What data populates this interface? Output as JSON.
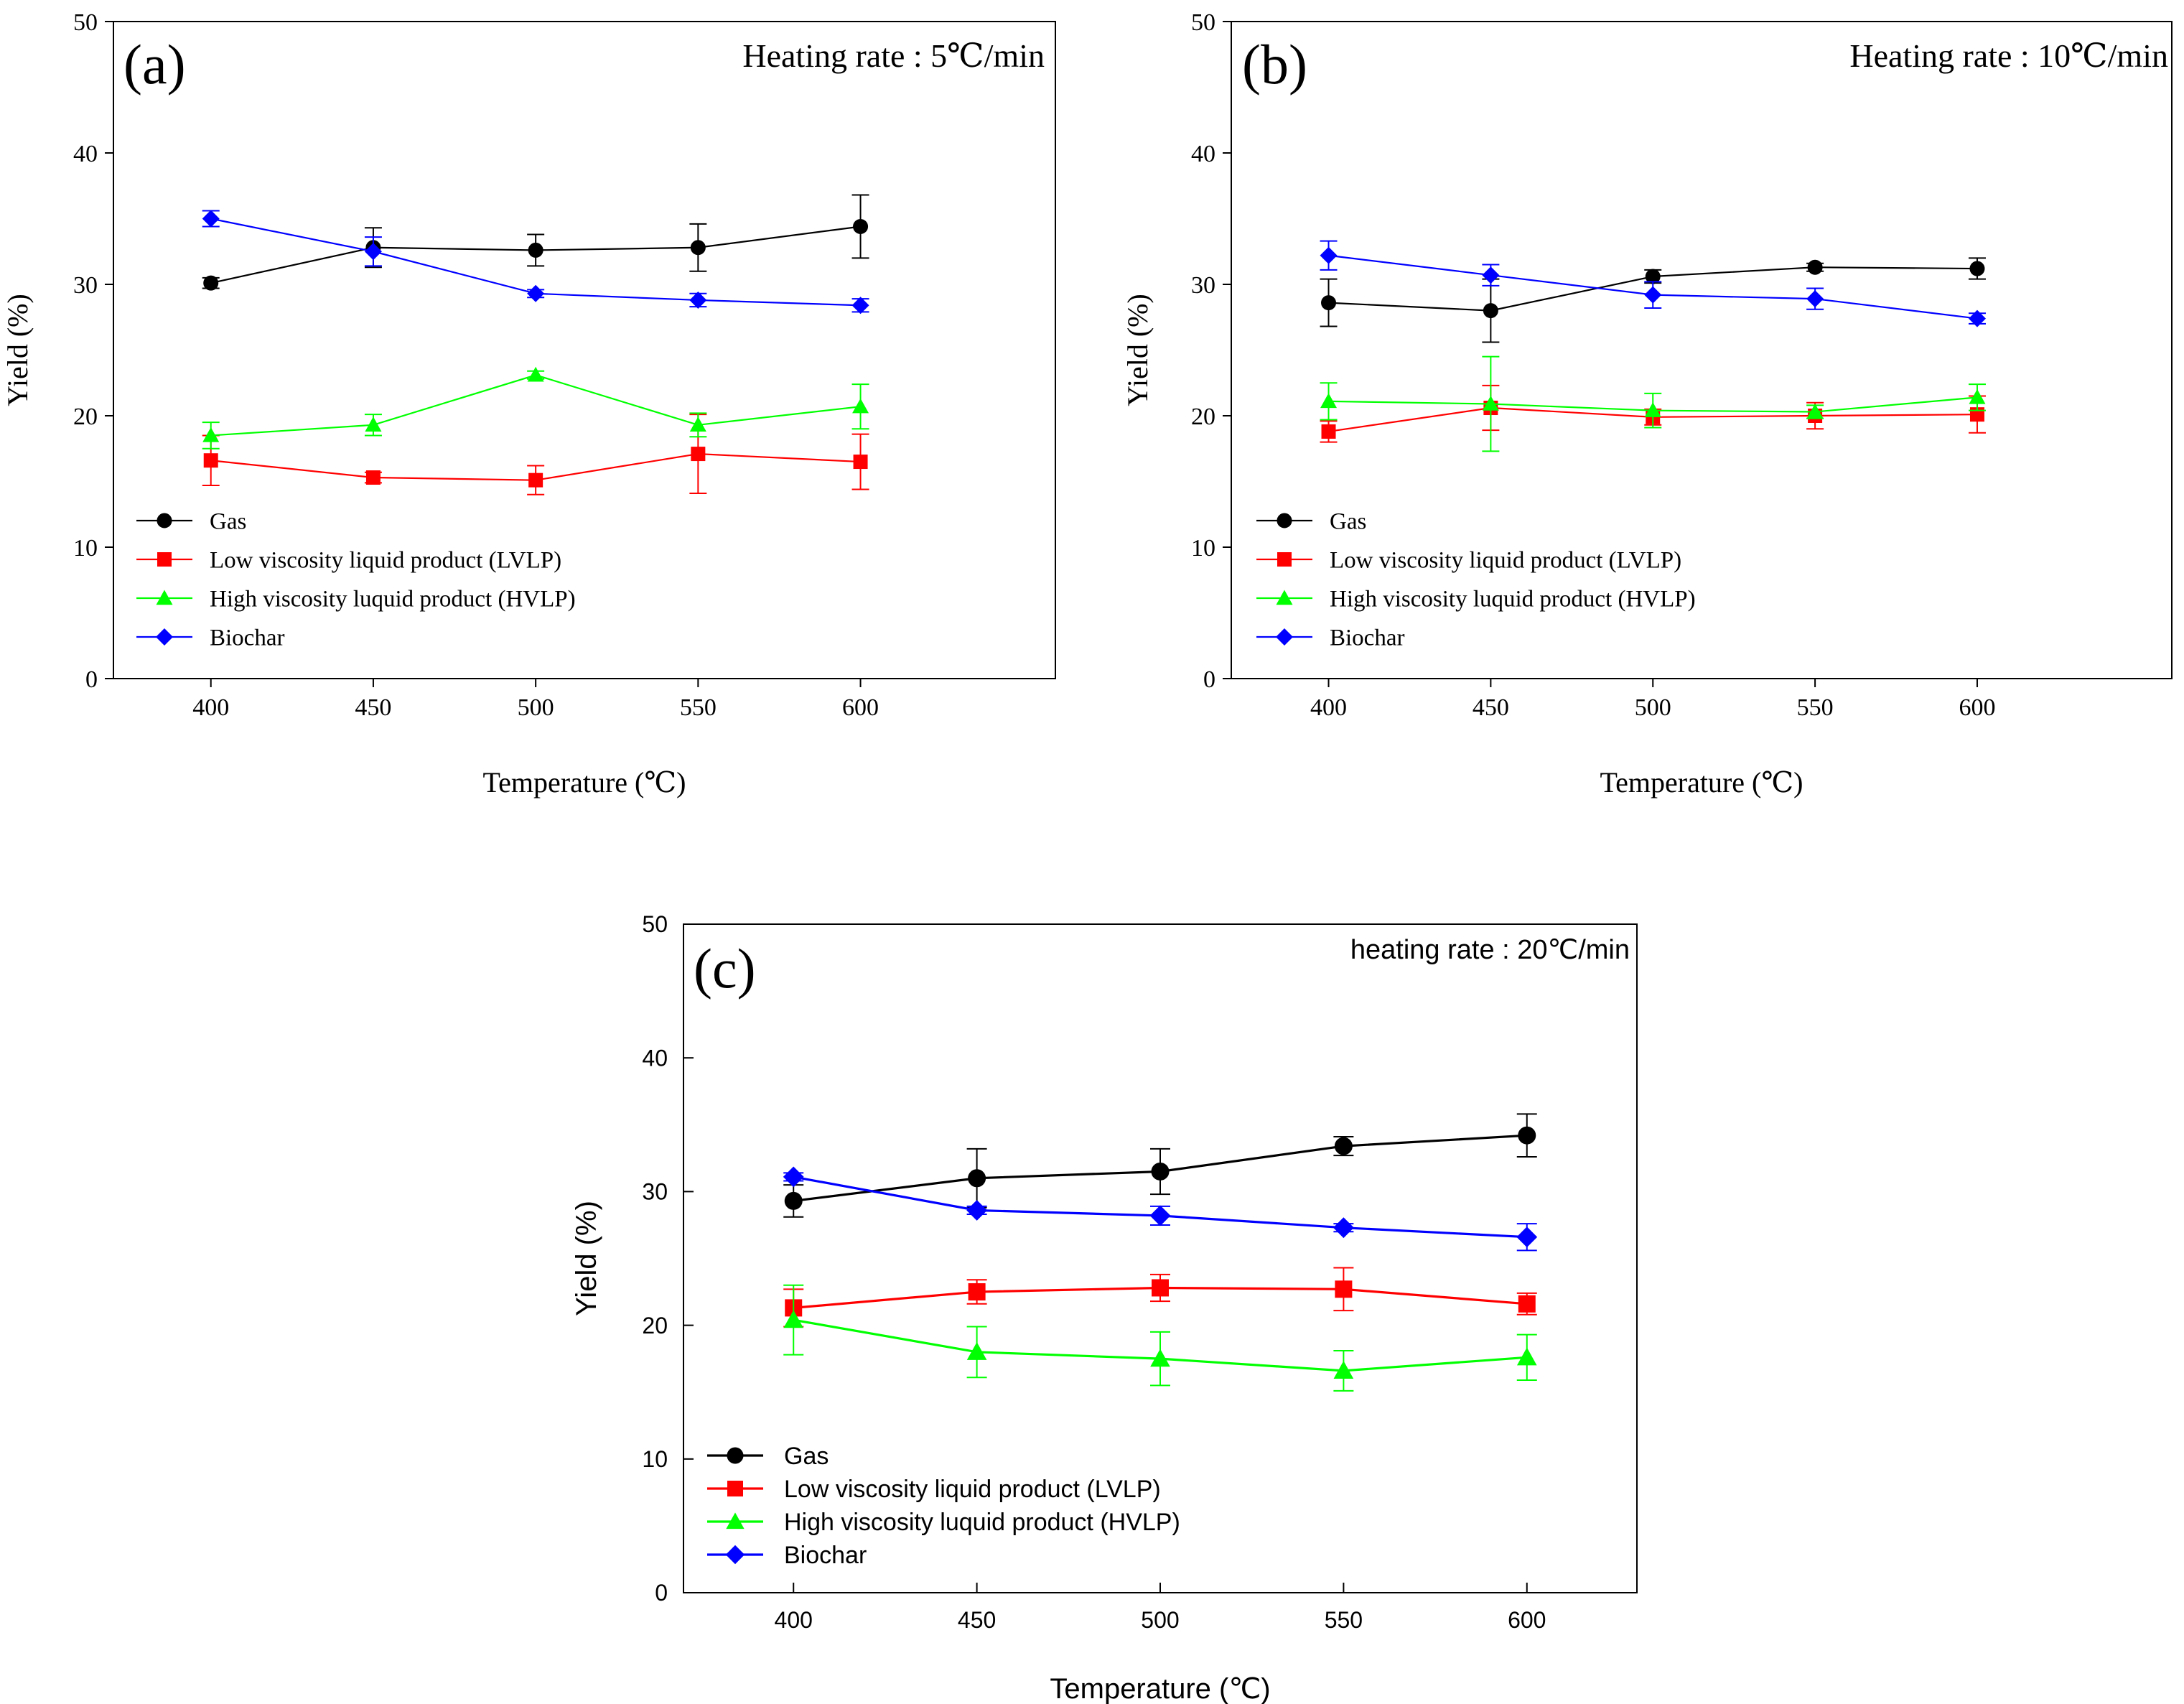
{
  "figure": {
    "panels_count": 3
  },
  "chart_data": [
    {
      "type": "line",
      "panel_label": "(a)",
      "annotation": "Heating rate : 5℃/min",
      "title": "",
      "xlabel": "Temperature (℃)",
      "ylabel": "Yield (%)",
      "xlim": [
        370,
        660
      ],
      "ylim": [
        0,
        50
      ],
      "x_ticks": [
        "400",
        "450",
        "500",
        "550",
        "600"
      ],
      "y_ticks": [
        "0",
        "10",
        "20",
        "30",
        "40",
        "50"
      ],
      "x": [
        400,
        450,
        500,
        550,
        600
      ],
      "legend_position": "lower-left",
      "series": [
        {
          "name": "Gas",
          "color": "#000000",
          "marker": "circle",
          "values": [
            30.1,
            32.8,
            32.6,
            32.8,
            34.4
          ],
          "errors": [
            0.4,
            1.5,
            1.2,
            1.8,
            2.4
          ]
        },
        {
          "name": "Low viscosity liquid product (LVLP)",
          "color": "#ff0000",
          "marker": "square",
          "values": [
            16.6,
            15.3,
            15.1,
            17.1,
            16.5
          ],
          "errors": [
            1.9,
            0.4,
            1.1,
            3.0,
            2.1
          ]
        },
        {
          "name": "High viscosity luquid product (HVLP)",
          "color": "#00ff00",
          "marker": "triangle",
          "values": [
            18.5,
            19.3,
            23.1,
            19.3,
            20.7
          ],
          "errors": [
            1.0,
            0.8,
            0.3,
            0.9,
            1.7
          ]
        },
        {
          "name": "Biochar",
          "color": "#0000ff",
          "marker": "diamond",
          "values": [
            35.0,
            32.5,
            29.3,
            28.8,
            28.4
          ],
          "errors": [
            0.6,
            1.1,
            0.3,
            0.5,
            0.5
          ]
        }
      ]
    },
    {
      "type": "line",
      "panel_label": "(b)",
      "annotation": "Heating rate : 10℃/min",
      "title": "",
      "xlabel": "Temperature (℃)",
      "ylabel": "Yield (%)",
      "xlim": [
        370,
        660
      ],
      "ylim": [
        0,
        50
      ],
      "x_ticks": [
        "400",
        "450",
        "500",
        "550",
        "600"
      ],
      "y_ticks": [
        "0",
        "10",
        "20",
        "30",
        "40",
        "50"
      ],
      "x": [
        400,
        450,
        500,
        550,
        600
      ],
      "legend_position": "lower-left",
      "series": [
        {
          "name": "Gas",
          "color": "#000000",
          "marker": "circle",
          "values": [
            28.6,
            28.0,
            30.6,
            31.3,
            31.2
          ],
          "errors": [
            1.8,
            2.4,
            0.5,
            0.3,
            0.8
          ]
        },
        {
          "name": "Low viscosity liquid product (LVLP)",
          "color": "#ff0000",
          "marker": "square",
          "values": [
            18.8,
            20.6,
            19.9,
            20.0,
            20.1
          ],
          "errors": [
            0.8,
            1.7,
            0.6,
            1.0,
            1.4
          ]
        },
        {
          "name": "High viscosity luquid product (HVLP)",
          "color": "#00ff00",
          "marker": "triangle",
          "values": [
            21.1,
            20.9,
            20.4,
            20.3,
            21.4
          ],
          "errors": [
            1.4,
            3.6,
            1.3,
            0.5,
            1.0
          ]
        },
        {
          "name": "Biochar",
          "color": "#0000ff",
          "marker": "diamond",
          "values": [
            32.2,
            30.7,
            29.2,
            28.9,
            27.4
          ],
          "errors": [
            1.1,
            0.8,
            1.0,
            0.8,
            0.4
          ]
        }
      ]
    },
    {
      "type": "line",
      "panel_label": "(c)",
      "annotation": "heating rate : 20℃/min",
      "title": "",
      "xlabel": "Temperature (℃)",
      "ylabel": "Yield (%)",
      "xlim": [
        370,
        630
      ],
      "ylim": [
        0,
        50
      ],
      "x_ticks": [
        "400",
        "450",
        "500",
        "550",
        "600"
      ],
      "y_ticks": [
        "0",
        "10",
        "20",
        "30",
        "40",
        "50"
      ],
      "x": [
        400,
        450,
        500,
        550,
        600
      ],
      "legend_position": "lower-left",
      "series": [
        {
          "name": "Gas",
          "color": "#000000",
          "marker": "circle",
          "values": [
            29.3,
            31.0,
            31.5,
            33.4,
            34.2
          ],
          "errors": [
            1.2,
            2.2,
            1.7,
            0.7,
            1.6
          ]
        },
        {
          "name": "Low viscosity liquid product (LVLP)",
          "color": "#ff0000",
          "marker": "square",
          "values": [
            21.3,
            22.5,
            22.8,
            22.7,
            21.6
          ],
          "errors": [
            1.4,
            0.9,
            1.0,
            1.6,
            0.8
          ]
        },
        {
          "name": "High viscosity luquid product (HVLP)",
          "color": "#00ff00",
          "marker": "triangle",
          "values": [
            20.4,
            18.0,
            17.5,
            16.6,
            17.6
          ],
          "errors": [
            2.6,
            1.9,
            2.0,
            1.5,
            1.7
          ]
        },
        {
          "name": "Biochar",
          "color": "#0000ff",
          "marker": "diamond",
          "values": [
            31.1,
            28.6,
            28.2,
            27.3,
            26.6
          ],
          "errors": [
            0.3,
            0.3,
            0.7,
            0.3,
            1.0
          ]
        }
      ]
    }
  ]
}
